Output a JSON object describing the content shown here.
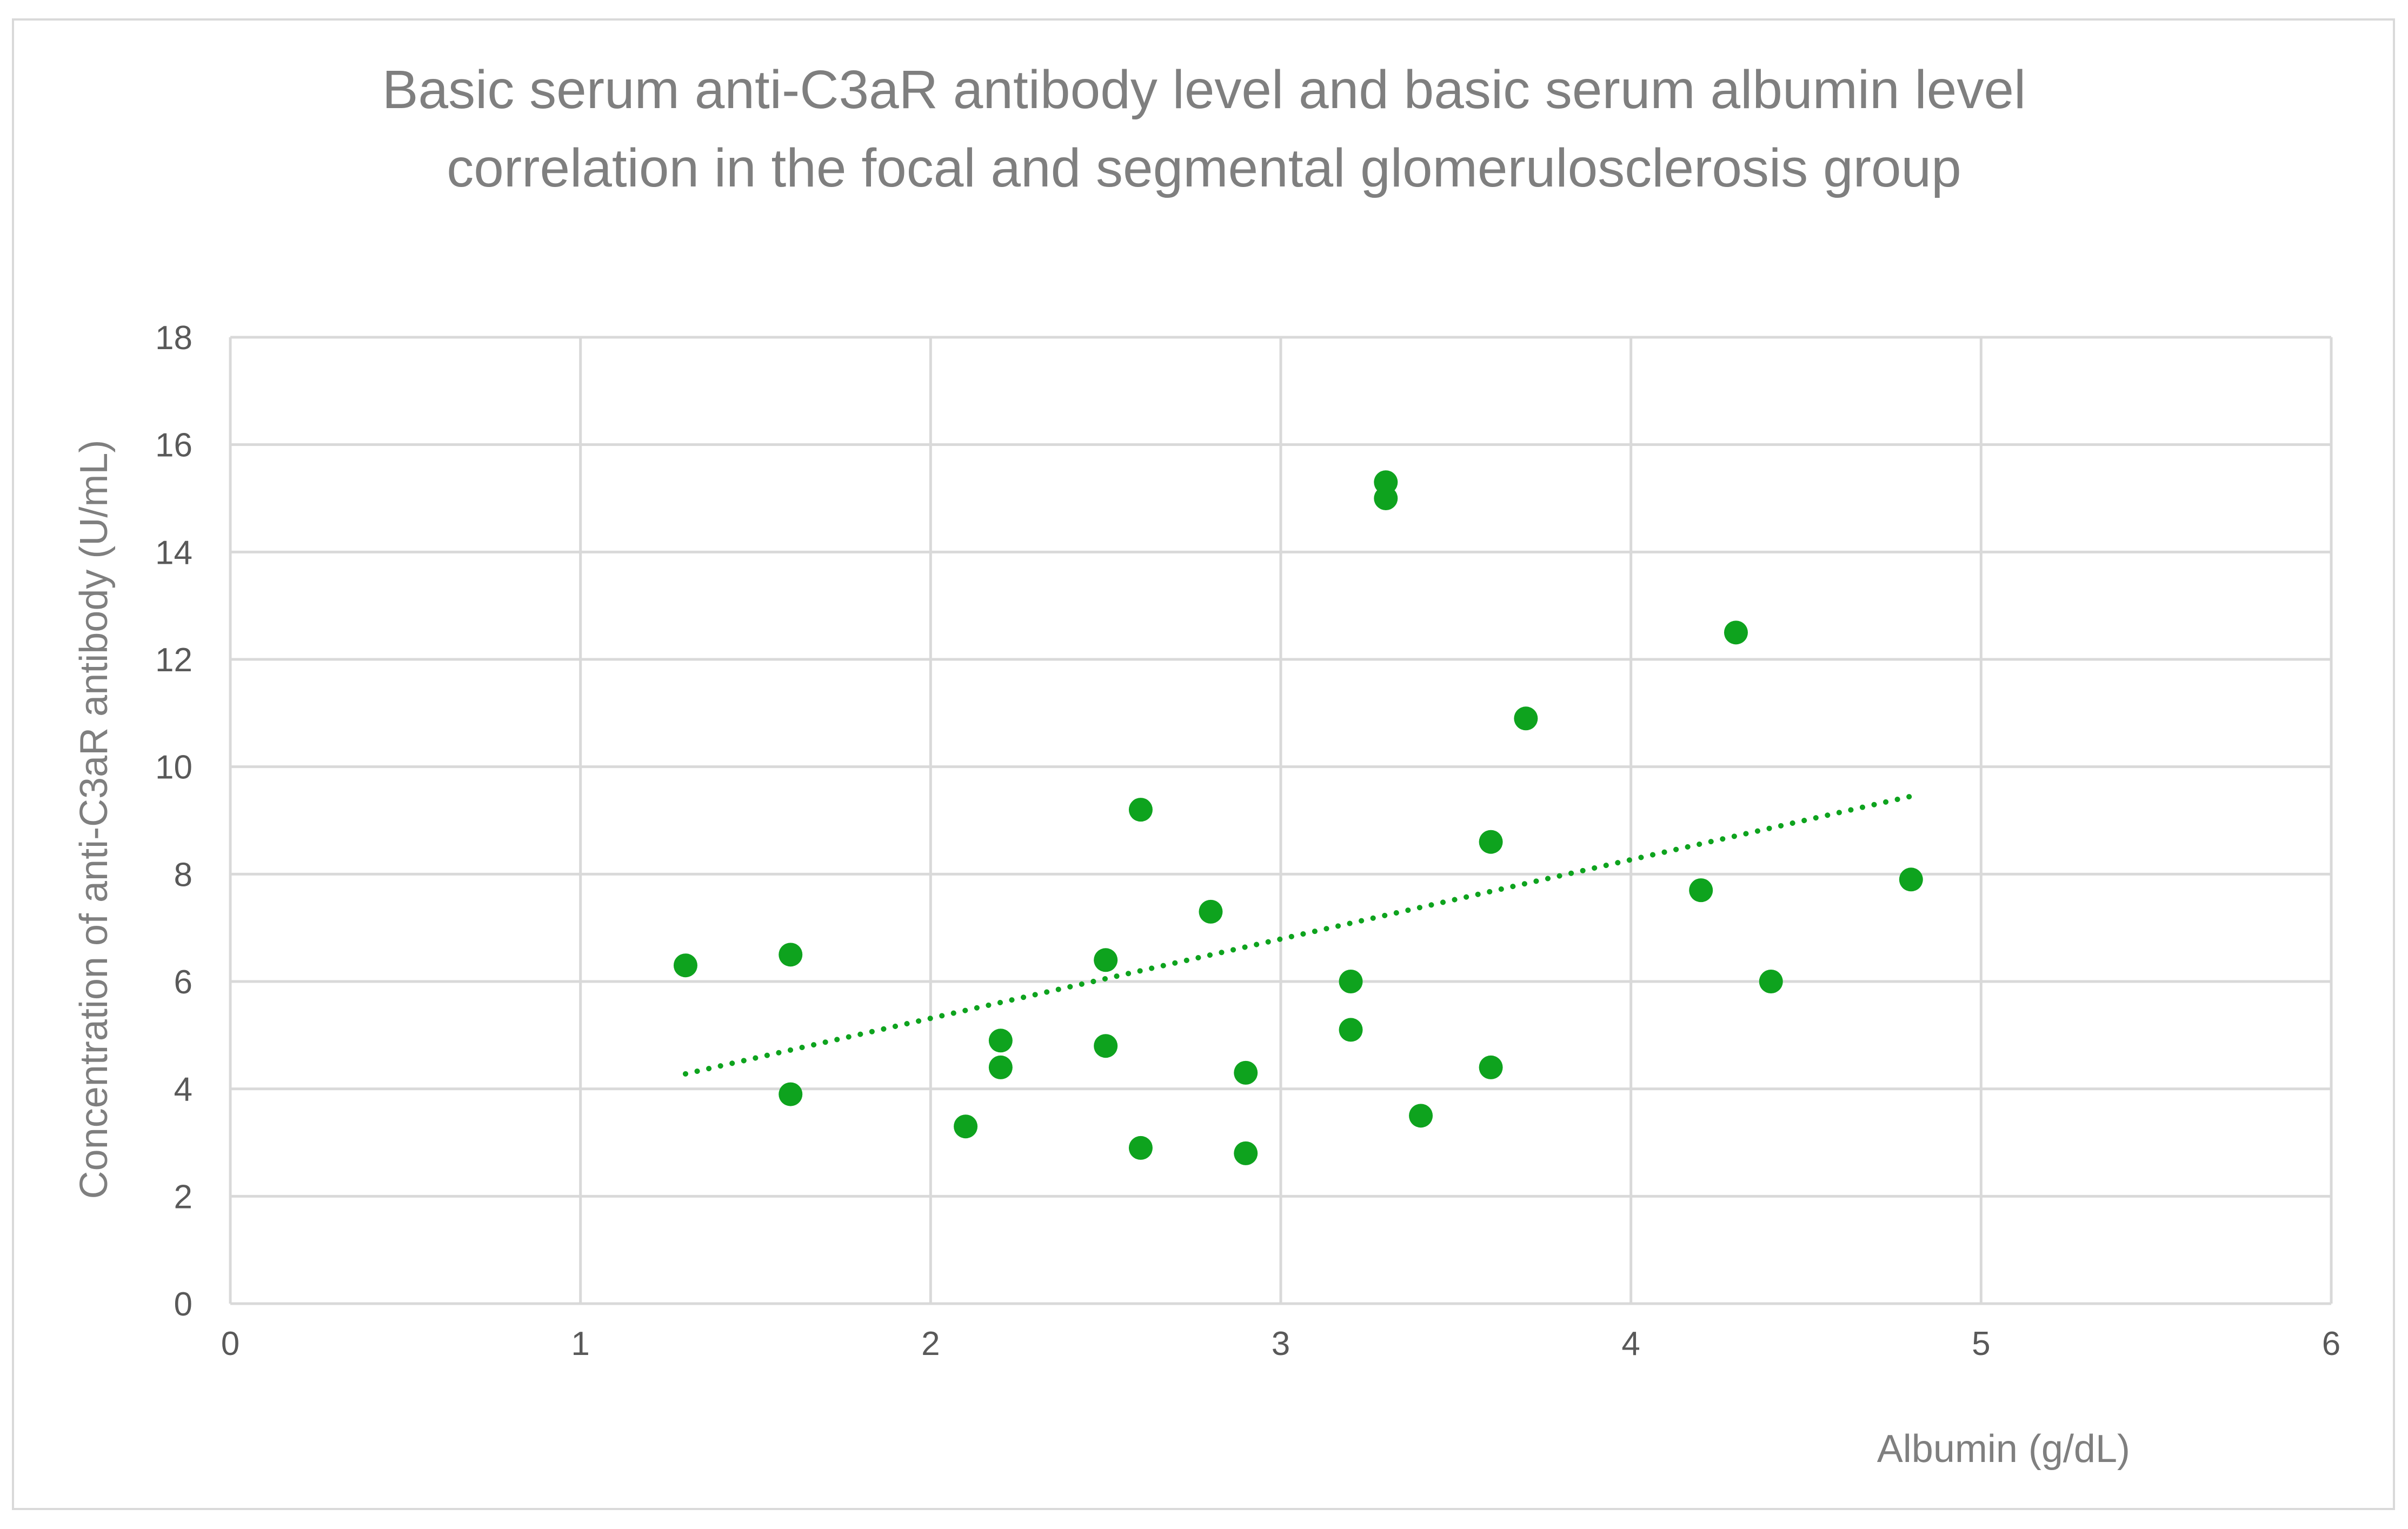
{
  "chart_data": {
    "type": "scatter",
    "title": [
      "Basic serum anti-C3aR antibody level and basic serum albumin level",
      "correlation in the focal and segmental glomerulosclerosis group"
    ],
    "xlabel": "Albumin (g/dL)",
    "ylabel": "Concentration of anti-C3aR antibody (U/mL)",
    "xlim": [
      0,
      6
    ],
    "ylim": [
      0,
      18
    ],
    "xticks": [
      0,
      1,
      2,
      3,
      4,
      5,
      6
    ],
    "yticks": [
      0,
      2,
      4,
      6,
      8,
      10,
      12,
      14,
      16,
      18
    ],
    "grid": true,
    "legend": "none",
    "colors": {
      "points": "#0ea31e",
      "trendline": "#0ea31e",
      "grid": "#d9d9d9",
      "title": "#7f7f7f",
      "ticks": "#595959"
    },
    "series": [
      {
        "points": [
          {
            "x": 1.3,
            "y": 6.3
          },
          {
            "x": 1.6,
            "y": 6.5
          },
          {
            "x": 1.6,
            "y": 3.9
          },
          {
            "x": 2.1,
            "y": 3.3
          },
          {
            "x": 2.2,
            "y": 4.9
          },
          {
            "x": 2.2,
            "y": 4.4
          },
          {
            "x": 2.5,
            "y": 6.4
          },
          {
            "x": 2.5,
            "y": 4.8
          },
          {
            "x": 2.6,
            "y": 9.2
          },
          {
            "x": 2.6,
            "y": 2.9
          },
          {
            "x": 2.8,
            "y": 7.3
          },
          {
            "x": 2.9,
            "y": 4.3
          },
          {
            "x": 2.9,
            "y": 2.8
          },
          {
            "x": 3.2,
            "y": 6.0
          },
          {
            "x": 3.2,
            "y": 5.1
          },
          {
            "x": 3.3,
            "y": 15.3
          },
          {
            "x": 3.3,
            "y": 15.0
          },
          {
            "x": 3.4,
            "y": 3.5
          },
          {
            "x": 3.6,
            "y": 8.6
          },
          {
            "x": 3.6,
            "y": 4.4
          },
          {
            "x": 3.7,
            "y": 10.9
          },
          {
            "x": 4.2,
            "y": 7.7
          },
          {
            "x": 4.3,
            "y": 12.5
          },
          {
            "x": 4.4,
            "y": 6.0
          },
          {
            "x": 4.8,
            "y": 7.9
          }
        ]
      }
    ],
    "trendline": {
      "type": "linear",
      "style": "dotted",
      "from": {
        "x": 1.3,
        "y": 4.28
      },
      "to": {
        "x": 4.8,
        "y": 9.45
      }
    }
  }
}
